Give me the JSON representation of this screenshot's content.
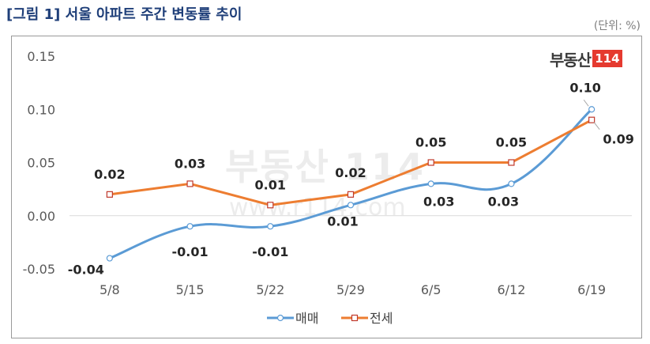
{
  "header": {
    "title": "[그림 1] 서울 아파트 주간 변동률 추이",
    "unit": "(단위: %)"
  },
  "brand": {
    "text": "부동산",
    "number": "114"
  },
  "watermark": {
    "text": "부동산 114",
    "url": "www.r114.com"
  },
  "chart_data": {
    "type": "line",
    "categories": [
      "5/8",
      "5/15",
      "5/22",
      "5/29",
      "6/5",
      "6/12",
      "6/19"
    ],
    "series": [
      {
        "name": "매매",
        "values": [
          -0.04,
          -0.01,
          -0.01,
          0.01,
          0.03,
          0.03,
          0.1
        ],
        "labels": [
          "-0.04",
          "-0.01",
          "-0.01",
          "0.01",
          "0.03",
          "0.03",
          "0.10"
        ],
        "color": "#5b9bd5",
        "smooth": true
      },
      {
        "name": "전세",
        "values": [
          0.02,
          0.03,
          0.01,
          0.02,
          0.05,
          0.05,
          0.09
        ],
        "labels": [
          "0.02",
          "0.03",
          "0.01",
          "0.02",
          "0.05",
          "0.05",
          "0.09"
        ],
        "color": "#ed7d31",
        "smooth": false
      }
    ],
    "y_ticks": [
      "0.15",
      "0.10",
      "0.05",
      "0.00",
      "-0.05"
    ],
    "ylim": [
      -0.05,
      0.15
    ],
    "grid": false,
    "legend_position": "bottom"
  }
}
